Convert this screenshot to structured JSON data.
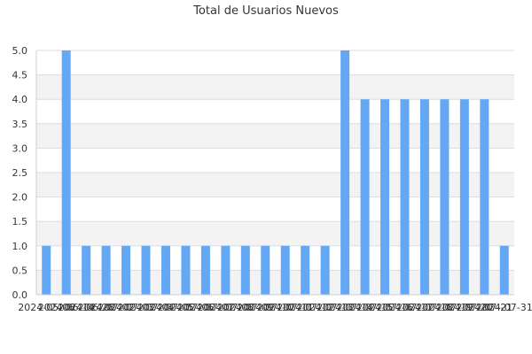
{
  "chart_data": {
    "type": "bar",
    "title": "Total de Usuarios Nuevos",
    "xlabel": "",
    "ylabel": "",
    "categories": [
      "2024-05-06",
      "2024-06-14",
      "2024-06-28",
      "2024-07-02",
      "2024-07-03",
      "2024-07-04",
      "2024-07-05",
      "2024-07-06",
      "2024-07-07",
      "2024-07-08",
      "2024-07-09",
      "2024-07-10",
      "2024-07-11",
      "2024-07-12",
      "2024-07-13",
      "2024-07-14",
      "2024-07-15",
      "2024-07-16",
      "2024-07-17",
      "2024-07-18",
      "2024-07-19",
      "2024-07-20",
      "2024-07-21",
      "2024-07-31"
    ],
    "values": [
      1,
      5,
      1,
      1,
      1,
      1,
      1,
      1,
      1,
      1,
      1,
      1,
      1,
      1,
      1,
      5,
      4,
      4,
      4,
      4,
      4,
      4,
      4,
      1
    ],
    "ylim": [
      0,
      5
    ],
    "yticks": [
      0,
      0.5,
      1,
      1.5,
      2,
      2.5,
      3,
      3.5,
      4,
      4.5,
      5
    ],
    "ytick_labels": [
      "0.0",
      "0.5",
      "1.0",
      "1.5",
      "2.0",
      "2.5",
      "3.0",
      "3.5",
      "4.0",
      "4.5",
      "5.0"
    ],
    "grid": true,
    "bar_color": "#64a8f5",
    "band_color": "#f3f3f3",
    "grid_color": "#dcdcdc",
    "axis_color": "#cccccc"
  }
}
